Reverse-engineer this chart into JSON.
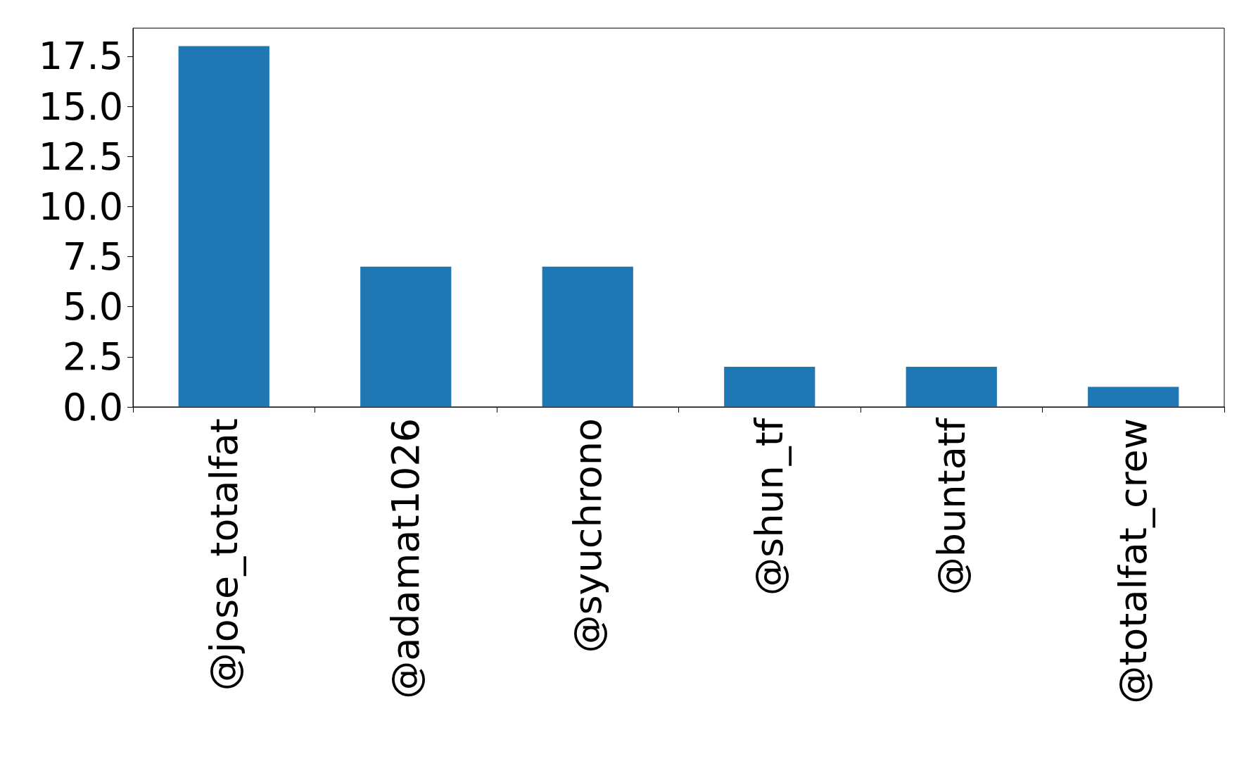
{
  "chart_data": {
    "type": "bar",
    "categories": [
      "@jose_totalfat",
      "@adamat1026",
      "@syuchrono",
      "@shun_tf",
      "@buntatf",
      "@totalfat_crew"
    ],
    "values": [
      18,
      7,
      7,
      2,
      2,
      1
    ],
    "color": "#1f77b4",
    "ylim": [
      0,
      18.9
    ],
    "yticks": [
      {
        "value": 0,
        "label": "0.0"
      },
      {
        "value": 2.5,
        "label": "2.5"
      },
      {
        "value": 5,
        "label": "5.0"
      },
      {
        "value": 7.5,
        "label": "7.5"
      },
      {
        "value": 10,
        "label": "10.0"
      },
      {
        "value": 12.5,
        "label": "12.5"
      },
      {
        "value": 15,
        "label": "15.0"
      },
      {
        "value": 17.5,
        "label": "17.5"
      }
    ],
    "grid": false
  }
}
